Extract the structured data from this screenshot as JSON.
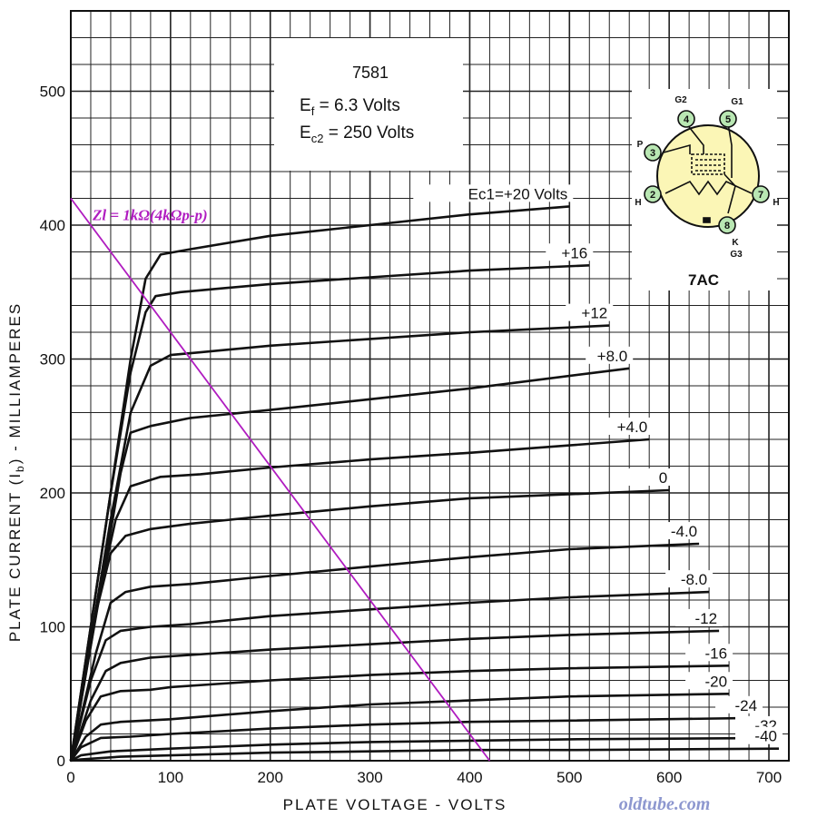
{
  "chart_data": {
    "type": "line",
    "xlabel": "PLATE VOLTAGE - VOLTS",
    "ylabel": "PLATE CURRENT (I",
    "ylabel_sub": "b",
    "ylabel_tail": ") - MILLIAMPERES",
    "xlim": [
      0,
      720
    ],
    "ylim": [
      0,
      560
    ],
    "grid": true,
    "x_ticks": [
      "0",
      "100",
      "200",
      "300",
      "400",
      "500",
      "600",
      "700"
    ],
    "x_tick_values": [
      0,
      100,
      200,
      300,
      400,
      500,
      600,
      700
    ],
    "y_ticks": [
      "0",
      "100",
      "200",
      "300",
      "400",
      "500"
    ],
    "y_tick_values": [
      0,
      100,
      200,
      300,
      400,
      500
    ],
    "info_box": {
      "tube": "7581",
      "line1_a": "E",
      "line1_sub": "f",
      "line1_b": " = 6.3 Volts",
      "line2_a": "E",
      "line2_sub": "c2",
      "line2_b": " = 250 Volts"
    },
    "load_line": {
      "label": "Zl = 1kΩ(4kΩp-p)",
      "color": "#b01cc0",
      "x": [
        0,
        420
      ],
      "y": [
        420,
        0
      ]
    },
    "series": [
      {
        "name": "Ec1=+20 Volts",
        "x": [
          0,
          40,
          60,
          75,
          90,
          120,
          200,
          300,
          400,
          500
        ],
        "y": [
          0,
          200,
          300,
          360,
          378,
          382,
          392,
          400,
          408,
          414
        ]
      },
      {
        "name": "+16",
        "x": [
          0,
          40,
          60,
          75,
          85,
          110,
          200,
          300,
          400,
          520
        ],
        "y": [
          0,
          200,
          290,
          335,
          347,
          350,
          356,
          361,
          366,
          370
        ]
      },
      {
        "name": "+12",
        "x": [
          0,
          40,
          60,
          80,
          100,
          130,
          200,
          300,
          400,
          540
        ],
        "y": [
          0,
          180,
          260,
          295,
          303,
          305,
          310,
          315,
          320,
          325
        ]
      },
      {
        "name": "+8.0",
        "x": [
          0,
          35,
          50,
          60,
          80,
          120,
          200,
          300,
          400,
          560
        ],
        "y": [
          0,
          150,
          215,
          245,
          250,
          256,
          262,
          270,
          278,
          293
        ]
      },
      {
        "name": "+4.0",
        "x": [
          0,
          30,
          45,
          60,
          90,
          130,
          200,
          300,
          400,
          580
        ],
        "y": [
          0,
          130,
          180,
          205,
          212,
          214,
          219,
          225,
          230,
          240
        ]
      },
      {
        "name": "0",
        "x": [
          0,
          25,
          40,
          55,
          80,
          120,
          200,
          300,
          400,
          600
        ],
        "y": [
          0,
          110,
          155,
          168,
          173,
          177,
          183,
          190,
          196,
          202
        ]
      },
      {
        "name": "-4.0",
        "x": [
          0,
          25,
          40,
          55,
          80,
          120,
          200,
          300,
          400,
          500,
          630
        ],
        "y": [
          0,
          80,
          118,
          126,
          130,
          132,
          138,
          145,
          152,
          158,
          162
        ]
      },
      {
        "name": "-8.0",
        "x": [
          0,
          20,
          35,
          50,
          80,
          120,
          200,
          300,
          400,
          500,
          640
        ],
        "y": [
          0,
          60,
          90,
          97,
          100,
          102,
          108,
          113,
          118,
          122,
          126
        ]
      },
      {
        "name": "-12",
        "x": [
          0,
          20,
          35,
          50,
          80,
          120,
          200,
          300,
          400,
          500,
          650
        ],
        "y": [
          0,
          45,
          67,
          73,
          77,
          79,
          83,
          87,
          91,
          94,
          97
        ]
      },
      {
        "name": "-16",
        "x": [
          0,
          15,
          30,
          50,
          80,
          100,
          200,
          300,
          400,
          500,
          660
        ],
        "y": [
          0,
          30,
          48,
          52,
          53,
          55,
          60,
          64,
          67,
          69,
          71
        ]
      },
      {
        "name": "-20",
        "x": [
          0,
          15,
          30,
          50,
          100,
          200,
          300,
          400,
          500,
          660
        ],
        "y": [
          0,
          18,
          27,
          29,
          31,
          37,
          42,
          45,
          48,
          50
        ]
      },
      {
        "name": "-24",
        "x": [
          0,
          10,
          30,
          60,
          100,
          200,
          300,
          400,
          500,
          690
        ],
        "y": [
          0,
          10,
          17,
          18,
          20,
          24,
          27,
          29,
          30,
          32
        ]
      },
      {
        "name": "-32",
        "x": [
          0,
          10,
          40,
          100,
          200,
          300,
          400,
          500,
          710
        ],
        "y": [
          0,
          4,
          7,
          9,
          12,
          14,
          15,
          16,
          17
        ]
      },
      {
        "name": "-40",
        "x": [
          0,
          10,
          50,
          100,
          200,
          300,
          400,
          500,
          710
        ],
        "y": [
          0,
          1,
          3,
          4,
          6,
          7,
          8,
          8,
          9
        ]
      }
    ],
    "socket_diagram": {
      "title": "7AC",
      "pins": [
        {
          "num": "2",
          "label": "H"
        },
        {
          "num": "3",
          "label": "P"
        },
        {
          "num": "4",
          "label": "G2"
        },
        {
          "num": "5",
          "label": "G1"
        },
        {
          "num": "7",
          "label": "H"
        },
        {
          "num": "8",
          "label": "K"
        }
      ],
      "pin8_extra": "G3",
      "pin_color": "#b9e7b3",
      "bulb_color": "#fbf6b6"
    }
  },
  "watermark": "oldtube.com"
}
